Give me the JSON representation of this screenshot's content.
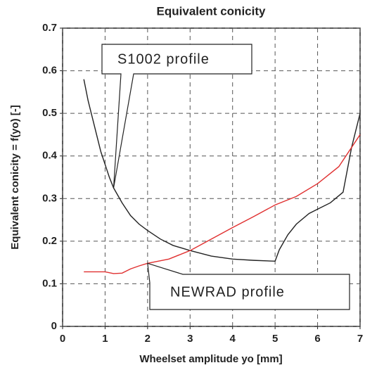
{
  "chart_data": {
    "type": "line",
    "title": "Equivalent conicity",
    "x_label": "Wheelset amplitude yo [mm]",
    "y_label": "Equivalent conicity = f(yo) [-]",
    "xlim": [
      0,
      7
    ],
    "xticks": [
      0,
      1,
      2,
      3,
      4,
      5,
      6,
      7
    ],
    "ylim": [
      0,
      0.7
    ],
    "yticks": [
      0,
      0.1,
      0.2,
      0.3,
      0.4,
      0.5,
      0.6,
      0.7
    ],
    "grid": true,
    "series": [
      {
        "name": "S1002 profile",
        "color": "#222222",
        "x": [
          0.5,
          0.6,
          0.7,
          0.8,
          0.9,
          1.0,
          1.1,
          1.2,
          1.4,
          1.6,
          1.8,
          2.0,
          2.3,
          2.6,
          3.0,
          3.5,
          4.0,
          4.5,
          5.0,
          5.1,
          5.3,
          5.5,
          5.8,
          6.0,
          6.3,
          6.6,
          6.8,
          7.0
        ],
        "values": [
          0.58,
          0.53,
          0.49,
          0.45,
          0.41,
          0.38,
          0.35,
          0.325,
          0.29,
          0.26,
          0.24,
          0.225,
          0.205,
          0.19,
          0.178,
          0.165,
          0.158,
          0.155,
          0.153,
          0.18,
          0.215,
          0.24,
          0.265,
          0.275,
          0.29,
          0.315,
          0.42,
          0.5
        ]
      },
      {
        "name": "NEWRAD profile",
        "color": "#e03030",
        "x": [
          0.5,
          1.0,
          1.2,
          1.4,
          1.6,
          1.8,
          2.0,
          2.5,
          3.0,
          3.5,
          4.0,
          4.5,
          5.0,
          5.5,
          6.0,
          6.5,
          7.0
        ],
        "values": [
          0.128,
          0.128,
          0.124,
          0.125,
          0.135,
          0.142,
          0.148,
          0.158,
          0.178,
          0.205,
          0.232,
          0.258,
          0.285,
          0.305,
          0.335,
          0.375,
          0.45
        ]
      }
    ]
  }
}
